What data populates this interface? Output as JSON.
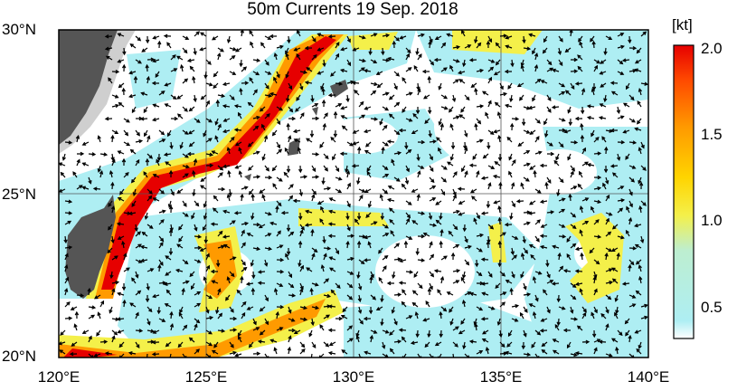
{
  "title": "50m Currents  19 Sep. 2018",
  "lat_labels": [
    "30°N",
    "25°N",
    "20°N"
  ],
  "lon_labels": [
    "120°E",
    "125°E",
    "130°E",
    "135°E",
    "140°E"
  ],
  "colorbar": {
    "unit": "[kt]",
    "tick_labels": [
      "2.0",
      "1.5",
      "1.0",
      "0.5"
    ],
    "range": [
      0.3,
      2.0
    ],
    "colors": [
      "#ffffff",
      "#aeeef3",
      "#bdeed0",
      "#f4f04a",
      "#ffd400",
      "#ff9a00",
      "#ff4a00",
      "#e60000"
    ]
  },
  "map": {
    "lon_range": [
      120,
      140
    ],
    "lat_range": [
      20,
      30
    ],
    "land_color": "#555555",
    "light_land_color": "#cfcfcf",
    "ocean_color": "#ffffff",
    "grid": true,
    "vector_color": "#000000"
  }
}
